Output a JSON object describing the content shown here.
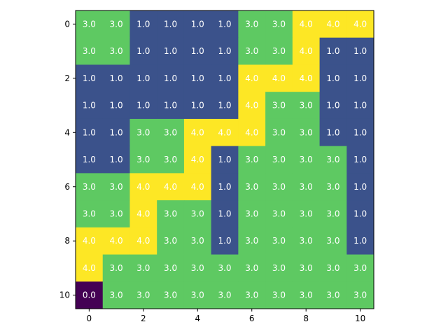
{
  "chart_data": {
    "type": "heatmap",
    "title": "",
    "xlabel": "",
    "ylabel": "",
    "x_ticks": [
      0,
      2,
      4,
      6,
      8,
      10
    ],
    "y_ticks": [
      0,
      2,
      4,
      6,
      8,
      10
    ],
    "colormap": "viridis",
    "vmin": 0,
    "vmax": 4,
    "colors": {
      "0.0": "#440154",
      "1.0": "#3b528b",
      "3.0": "#5ec962",
      "4.0": "#fde725"
    },
    "grid": false,
    "value_labels": [
      [
        "3.0",
        "3.0",
        "1.0",
        "1.0",
        "1.0",
        "1.0",
        "3.0",
        "3.0",
        "4.0",
        "4.0",
        "4.0"
      ],
      [
        "3.0",
        "3.0",
        "1.0",
        "1.0",
        "1.0",
        "1.0",
        "3.0",
        "3.0",
        "4.0",
        "1.0",
        "1.0"
      ],
      [
        "1.0",
        "1.0",
        "1.0",
        "1.0",
        "1.0",
        "1.0",
        "4.0",
        "4.0",
        "4.0",
        "1.0",
        "1.0"
      ],
      [
        "1.0",
        "1.0",
        "1.0",
        "1.0",
        "1.0",
        "1.0",
        "4.0",
        "3.0",
        "3.0",
        "1.0",
        "1.0"
      ],
      [
        "1.0",
        "1.0",
        "3.0",
        "3.0",
        "4.0",
        "4.0",
        "4.0",
        "3.0",
        "3.0",
        "1.0",
        "1.0"
      ],
      [
        "1.0",
        "1.0",
        "3.0",
        "3.0",
        "4.0",
        "1.0",
        "3.0",
        "3.0",
        "3.0",
        "3.0",
        "1.0"
      ],
      [
        "3.0",
        "3.0",
        "4.0",
        "4.0",
        "4.0",
        "1.0",
        "3.0",
        "3.0",
        "3.0",
        "3.0",
        "1.0"
      ],
      [
        "3.0",
        "3.0",
        "4.0",
        "3.0",
        "3.0",
        "1.0",
        "3.0",
        "3.0",
        "3.0",
        "3.0",
        "1.0"
      ],
      [
        "4.0",
        "4.0",
        "4.0",
        "3.0",
        "3.0",
        "1.0",
        "3.0",
        "3.0",
        "3.0",
        "3.0",
        "1.0"
      ],
      [
        "4.0",
        "3.0",
        "3.0",
        "3.0",
        "3.0",
        "3.0",
        "3.0",
        "3.0",
        "3.0",
        "3.0",
        "3.0"
      ],
      [
        "0.0",
        "3.0",
        "3.0",
        "3.0",
        "3.0",
        "3.0",
        "3.0",
        "3.0",
        "3.0",
        "3.0",
        "3.0"
      ]
    ]
  }
}
